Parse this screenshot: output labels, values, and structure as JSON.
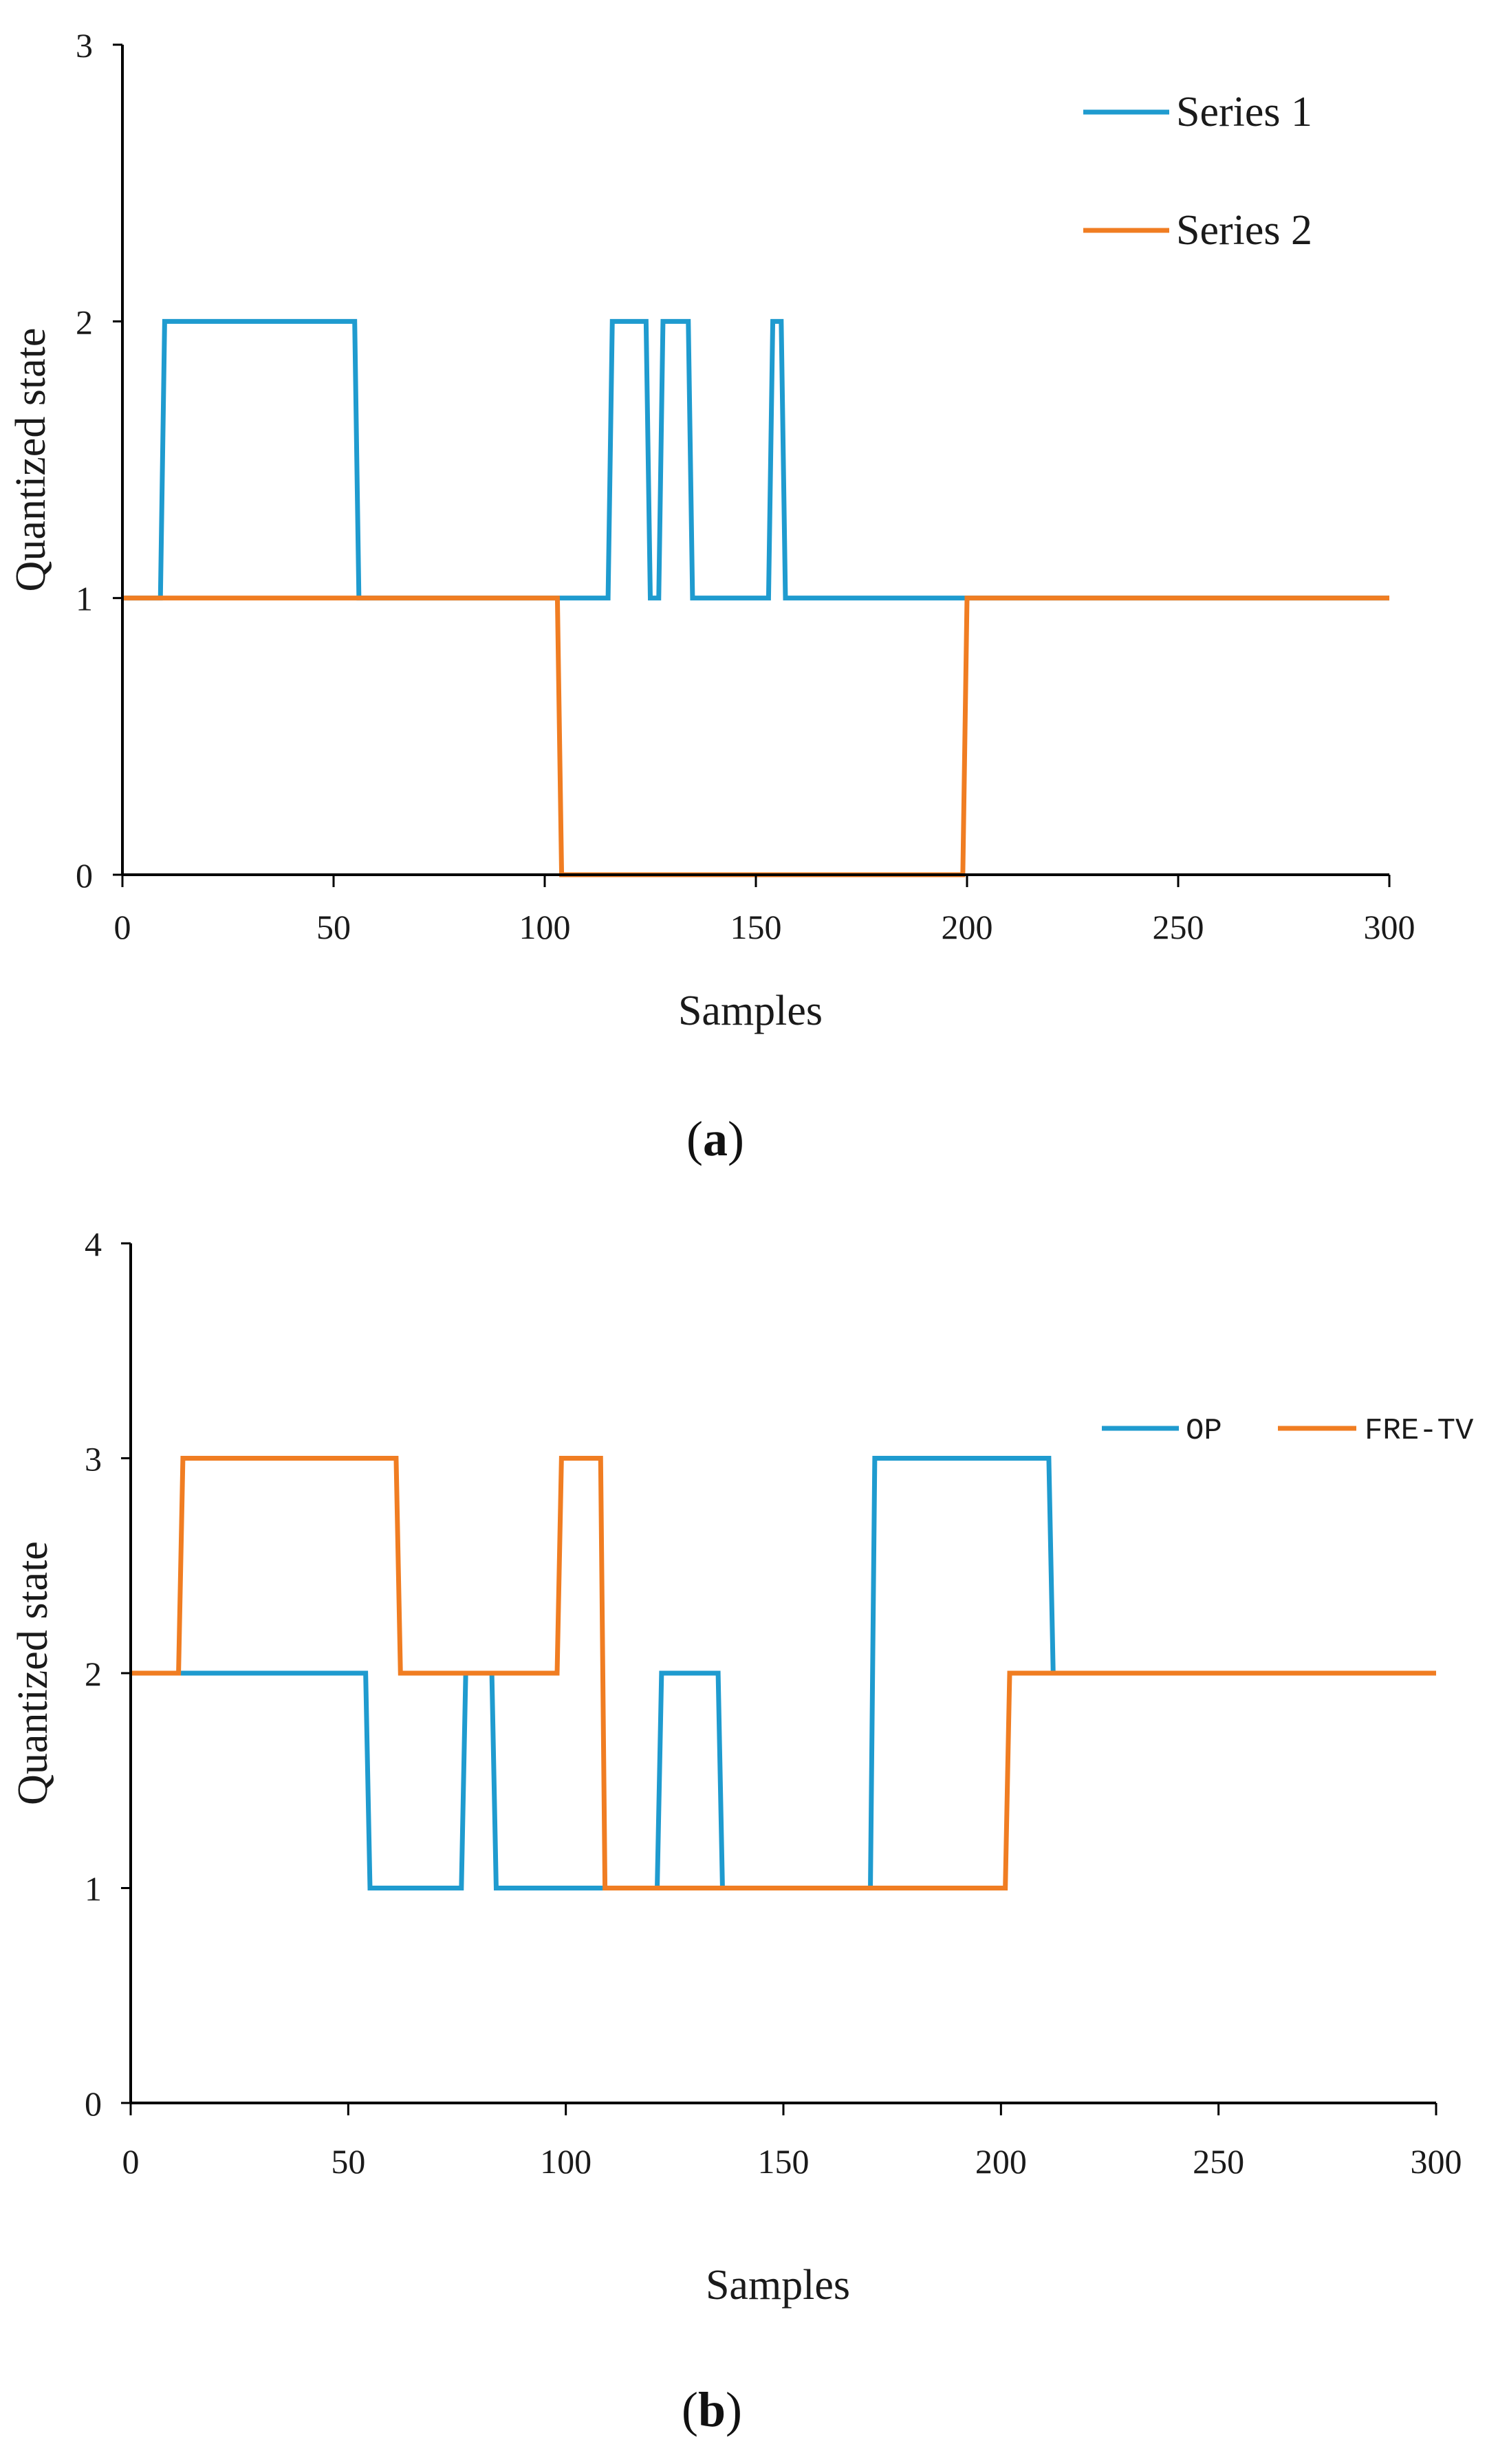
{
  "chart_data": [
    {
      "type": "line",
      "panel": "a",
      "xlabel": "Samples",
      "ylabel": "Quantized  state",
      "xlim": [
        0,
        300
      ],
      "ylim": [
        0,
        3
      ],
      "xticks": [
        0,
        50,
        100,
        150,
        200,
        250,
        300
      ],
      "yticks": [
        0,
        1,
        2,
        3
      ],
      "legend_position": "top-right",
      "series": [
        {
          "name": "Series 1",
          "color": "#1f9bcf",
          "points": [
            [
              0,
              1
            ],
            [
              9,
              1
            ],
            [
              10,
              2
            ],
            [
              55,
              2
            ],
            [
              56,
              1
            ],
            [
              115,
              1
            ],
            [
              116,
              2
            ],
            [
              124,
              2
            ],
            [
              125,
              1
            ],
            [
              127,
              1
            ],
            [
              128,
              2
            ],
            [
              134,
              2
            ],
            [
              135,
              1
            ],
            [
              153,
              1
            ],
            [
              154,
              2
            ],
            [
              156,
              2
            ],
            [
              157,
              1
            ],
            [
              300,
              1
            ]
          ]
        },
        {
          "name": "Series 2",
          "color": "#f07d22",
          "points": [
            [
              0,
              1
            ],
            [
              103,
              1
            ],
            [
              104,
              0
            ],
            [
              199,
              0
            ],
            [
              200,
              1
            ],
            [
              300,
              1
            ]
          ]
        }
      ]
    },
    {
      "type": "line",
      "panel": "b",
      "xlabel": "Samples",
      "ylabel": "Quantized state",
      "xlim": [
        0,
        300
      ],
      "ylim": [
        0,
        4
      ],
      "xticks": [
        0,
        50,
        100,
        150,
        200,
        250,
        300
      ],
      "yticks": [
        0,
        1,
        2,
        3,
        4
      ],
      "legend_position": "upper-right",
      "series": [
        {
          "name": "OP",
          "color": "#1f9bcf",
          "points": [
            [
              0,
              2
            ],
            [
              54,
              2
            ],
            [
              55,
              1
            ],
            [
              76,
              1
            ],
            [
              77,
              2
            ],
            [
              83,
              2
            ],
            [
              84,
              1
            ],
            [
              121,
              1
            ],
            [
              122,
              2
            ],
            [
              135,
              2
            ],
            [
              136,
              1
            ],
            [
              170,
              1
            ],
            [
              171,
              3
            ],
            [
              211,
              3
            ],
            [
              212,
              2
            ],
            [
              300,
              2
            ]
          ]
        },
        {
          "name": "FRE-TV",
          "color": "#f07d22",
          "points": [
            [
              0,
              2
            ],
            [
              11,
              2
            ],
            [
              12,
              3
            ],
            [
              61,
              3
            ],
            [
              62,
              2
            ],
            [
              98,
              2
            ],
            [
              99,
              3
            ],
            [
              108,
              3
            ],
            [
              109,
              1
            ],
            [
              201,
              1
            ],
            [
              202,
              2
            ],
            [
              300,
              2
            ]
          ]
        }
      ]
    }
  ],
  "captions": {
    "a": {
      "open": "(",
      "letter": "a",
      "close": ")"
    },
    "b": {
      "open": "(",
      "letter": "b",
      "close": ")"
    }
  }
}
